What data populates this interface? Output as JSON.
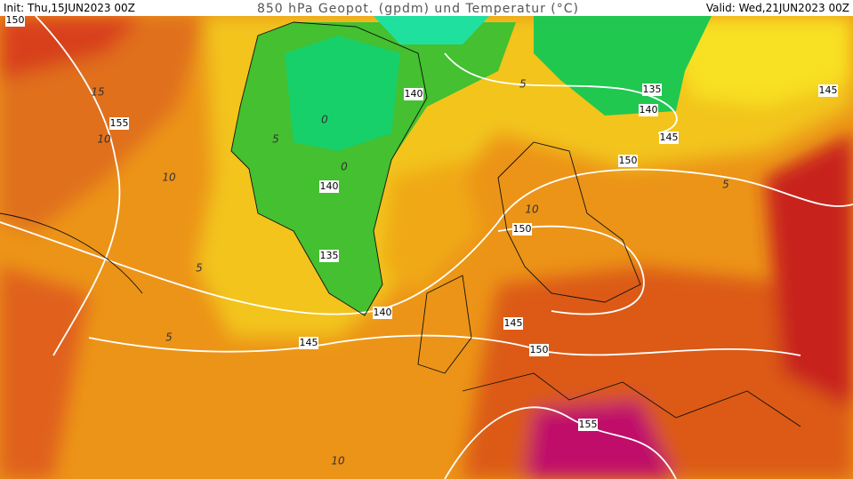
{
  "header": {
    "init": "Init: Thu,15JUN2023 00Z",
    "title": "850 hPa Geopot. (gpdm) und Temperatur (°C)",
    "valid": "Valid: Wed,21JUN2023 00Z"
  },
  "geopotential_labels": [
    150,
    155,
    140,
    135,
    140,
    145,
    150,
    145,
    140,
    135,
    150,
    140,
    145,
    145,
    150,
    155
  ],
  "temperature_labels": [
    15,
    10,
    10,
    5,
    5,
    5,
    0,
    0,
    5,
    10,
    5,
    10
  ]
}
